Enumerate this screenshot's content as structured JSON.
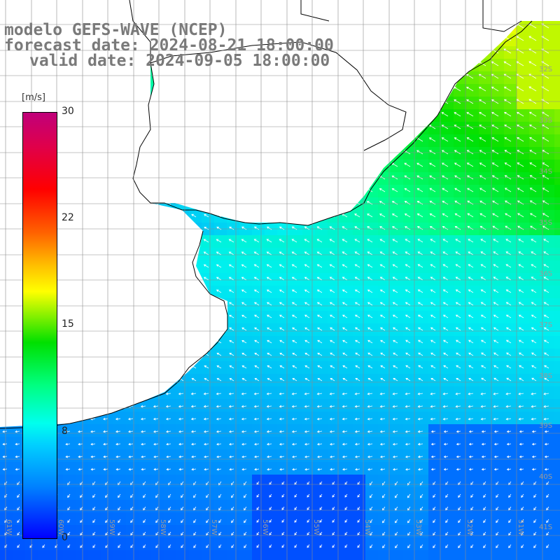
{
  "header": {
    "model_line": "modelo GEFS-WAVE (NCEP)",
    "forecast_line": "forecast date: 2024-08-21 18:00:00",
    "valid_line": "valid date: 2024-09-05 18:00:00"
  },
  "colorbar": {
    "unit": "[m/s]",
    "ticks": [
      "30",
      "22",
      "15",
      "8",
      "0"
    ],
    "colors": [
      "#0000ff",
      "#0080ff",
      "#00ffee",
      "#00e000",
      "#ffff00",
      "#ff6000",
      "#ff0000",
      "#c0007a"
    ]
  },
  "map": {
    "latitude_labels": [
      "32S",
      "33S",
      "34S",
      "35S",
      "36S",
      "37S",
      "38S",
      "39S",
      "40S",
      "41S"
    ],
    "longitude_labels": [
      "61W",
      "60W",
      "59W",
      "58W",
      "57W",
      "56W",
      "55W",
      "54W",
      "53W",
      "52W",
      "51W"
    ],
    "land_color": "#ffffff",
    "vector_color": "#ffffff",
    "grid_color": "#8c8c8c"
  }
}
